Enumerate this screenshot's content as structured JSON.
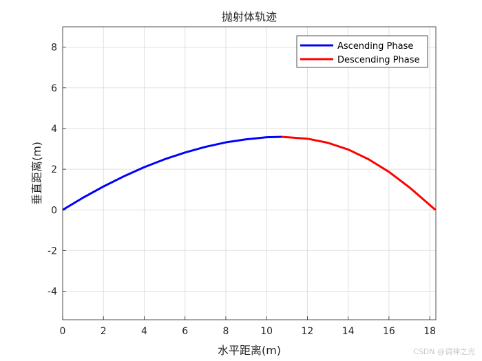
{
  "chart_data": {
    "type": "line",
    "title": "抛射体轨迹",
    "xlabel": "水平距离(m)",
    "ylabel": "垂直距离(m)",
    "xlim": [
      0,
      18.3
    ],
    "ylim": [
      -5.4,
      9
    ],
    "xticks": [
      0,
      2,
      4,
      6,
      8,
      10,
      12,
      14,
      16,
      18
    ],
    "yticks": [
      -4,
      -2,
      0,
      2,
      4,
      6,
      8
    ],
    "grid": true,
    "legend_position": "top-right",
    "series": [
      {
        "name": "Ascending Phase",
        "color": "#0000ff",
        "x": [
          0,
          1,
          2,
          3,
          4,
          5,
          6,
          7,
          8,
          9,
          10,
          10.74
        ],
        "y": [
          0,
          0.6,
          1.15,
          1.65,
          2.1,
          2.49,
          2.82,
          3.1,
          3.32,
          3.47,
          3.57,
          3.59
        ]
      },
      {
        "name": "Descending Phase",
        "color": "#ff0000",
        "x": [
          10.74,
          12,
          13,
          14,
          15,
          16,
          17,
          18.28
        ],
        "y": [
          3.59,
          3.5,
          3.3,
          2.97,
          2.49,
          1.87,
          1.11,
          0
        ]
      }
    ]
  },
  "watermark": "CSDN @调神之光"
}
